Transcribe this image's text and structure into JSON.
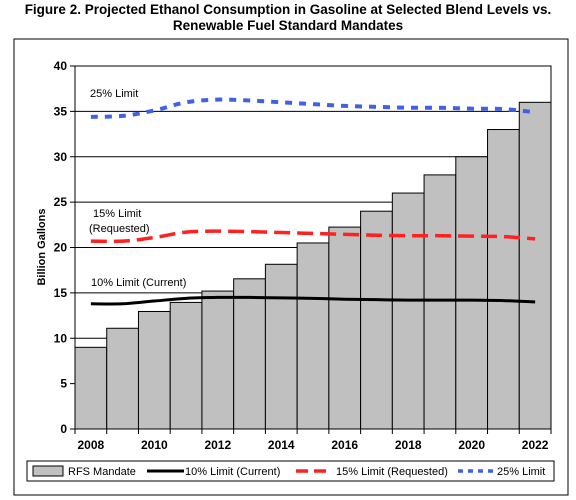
{
  "figure": {
    "title_line1": "Figure 2. Projected Ethanol Consumption in Gasoline at Selected Blend Levels vs.",
    "title_line2": "Renewable Fuel Standard Mandates"
  },
  "chart_data": {
    "type": "bar",
    "title": "Figure 2. Projected Ethanol Consumption in Gasoline at Selected Blend Levels vs. Renewable Fuel Standard Mandates",
    "xlabel": "",
    "ylabel": "Billion Gallons",
    "ylim": [
      0,
      40
    ],
    "yticks": [
      0,
      5,
      10,
      15,
      20,
      25,
      30,
      35,
      40
    ],
    "xtick_labels": [
      "2008",
      "2010",
      "2012",
      "2014",
      "2016",
      "2018",
      "2020",
      "2022"
    ],
    "categories": [
      "2008",
      "2009",
      "2010",
      "2011",
      "2012",
      "2013",
      "2014",
      "2015",
      "2016",
      "2017",
      "2018",
      "2019",
      "2020",
      "2021",
      "2022"
    ],
    "grid": true,
    "legend_position": "bottom",
    "series": [
      {
        "name": "RFS Mandate",
        "kind": "bar",
        "color": "#c0c0c0",
        "values": [
          9.0,
          11.1,
          12.95,
          13.95,
          15.2,
          16.55,
          18.15,
          20.5,
          22.25,
          24.0,
          26.0,
          28.0,
          30.0,
          33.0,
          36.0
        ]
      },
      {
        "name": "10% Limit (Current)",
        "kind": "line",
        "style": "solid",
        "color": "#000000",
        "values": [
          13.8,
          13.8,
          14.1,
          14.4,
          14.5,
          14.5,
          14.45,
          14.4,
          14.3,
          14.25,
          14.2,
          14.2,
          14.2,
          14.15,
          14.0
        ]
      },
      {
        "name": "15% Limit (Requested)",
        "kind": "line",
        "style": "dashed",
        "color": "#ff2020",
        "values": [
          20.7,
          20.7,
          21.1,
          21.7,
          21.8,
          21.75,
          21.65,
          21.55,
          21.45,
          21.35,
          21.3,
          21.3,
          21.25,
          21.2,
          20.95
        ]
      },
      {
        "name": "25% Limit",
        "kind": "line",
        "style": "dotted",
        "color": "#4060e8",
        "values": [
          34.4,
          34.5,
          35.1,
          36.0,
          36.3,
          36.2,
          36.0,
          35.8,
          35.6,
          35.5,
          35.4,
          35.4,
          35.3,
          35.25,
          34.9
        ]
      }
    ],
    "annotations": [
      {
        "text": "25% Limit",
        "near_series": "25% Limit"
      },
      {
        "text": "15% Limit",
        "near_series": "15% Limit (Requested)"
      },
      {
        "text": "(Requested)",
        "near_series": "15% Limit (Requested)"
      },
      {
        "text": "10% Limit (Current)",
        "near_series": "10% Limit (Current)"
      }
    ]
  }
}
